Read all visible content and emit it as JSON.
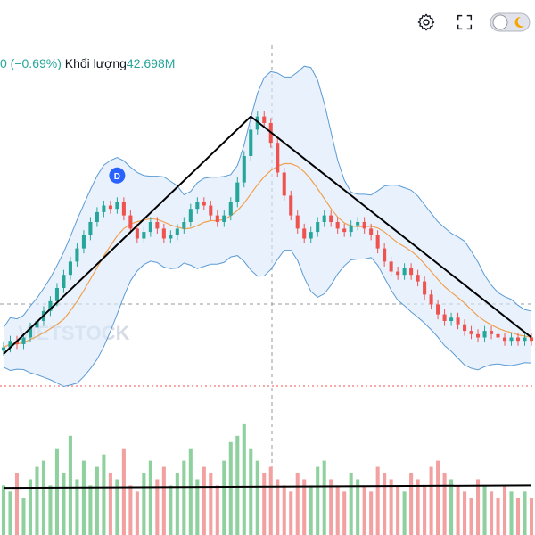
{
  "toolbar": {
    "settings_icon": "gear-icon",
    "fullscreen_icon": "fullscreen-icon",
    "theme_toggle": "theme-toggle-icon"
  },
  "legend": {
    "change": "0 (−0.69%)",
    "volume_label": "Khối lượng",
    "volume_value": "42.698M"
  },
  "watermark": "VIETSTOCK",
  "marker": {
    "label": "D"
  },
  "colors": {
    "up": "#26a69a",
    "down": "#ef5350",
    "band": "#5b9bd5",
    "band_fill": "#dbeafa",
    "ma": "#f0a050",
    "trend": "#000000"
  },
  "chart_data": {
    "type": "candlestick",
    "title": "",
    "xlabel": "",
    "ylabel": "",
    "indicators": [
      "Bollinger Bands",
      "Moving Average",
      "Volume"
    ],
    "price_range": [
      0,
      100
    ],
    "series": [
      {
        "name": "price",
        "close": [
          22,
          24,
          23,
          25,
          28,
          30,
          33,
          36,
          40,
          44,
          48,
          52,
          56,
          60,
          63,
          65,
          64,
          66,
          62,
          58,
          55,
          57,
          60,
          58,
          55,
          56,
          58,
          60,
          64,
          66,
          65,
          62,
          60,
          62,
          66,
          72,
          80,
          88,
          92,
          90,
          84,
          75,
          68,
          62,
          58,
          55,
          57,
          60,
          62,
          60,
          58,
          57,
          59,
          60,
          58,
          56,
          52,
          48,
          45,
          44,
          46,
          44,
          42,
          38,
          35,
          32,
          30,
          31,
          29,
          27,
          26,
          25,
          27,
          26,
          25,
          24,
          25,
          24,
          25,
          24
        ]
      },
      {
        "name": "volume",
        "values": [
          40,
          35,
          50,
          30,
          45,
          55,
          60,
          40,
          70,
          50,
          80,
          45,
          60,
          40,
          55,
          65,
          50,
          45,
          70,
          40,
          35,
          50,
          60,
          45,
          55,
          40,
          50,
          60,
          70,
          45,
          55,
          50,
          40,
          60,
          75,
          80,
          90,
          70,
          60,
          50,
          55,
          45,
          40,
          35,
          50,
          45,
          40,
          55,
          60,
          45,
          40,
          35,
          50,
          45,
          40,
          35,
          55,
          50,
          45,
          40,
          35,
          50,
          45,
          40,
          55,
          60,
          50,
          45,
          40,
          35,
          30,
          45,
          40,
          35,
          30,
          40,
          35,
          30,
          35,
          30
        ]
      }
    ],
    "trendlines": [
      {
        "name": "uptrend",
        "from": [
          0,
          20
        ],
        "to": [
          37,
          92
        ]
      },
      {
        "name": "downtrend",
        "from": [
          37,
          92
        ],
        "to": [
          79,
          25
        ]
      },
      {
        "name": "volume-support",
        "from": [
          0,
          38
        ],
        "to": [
          79,
          40
        ]
      }
    ]
  }
}
